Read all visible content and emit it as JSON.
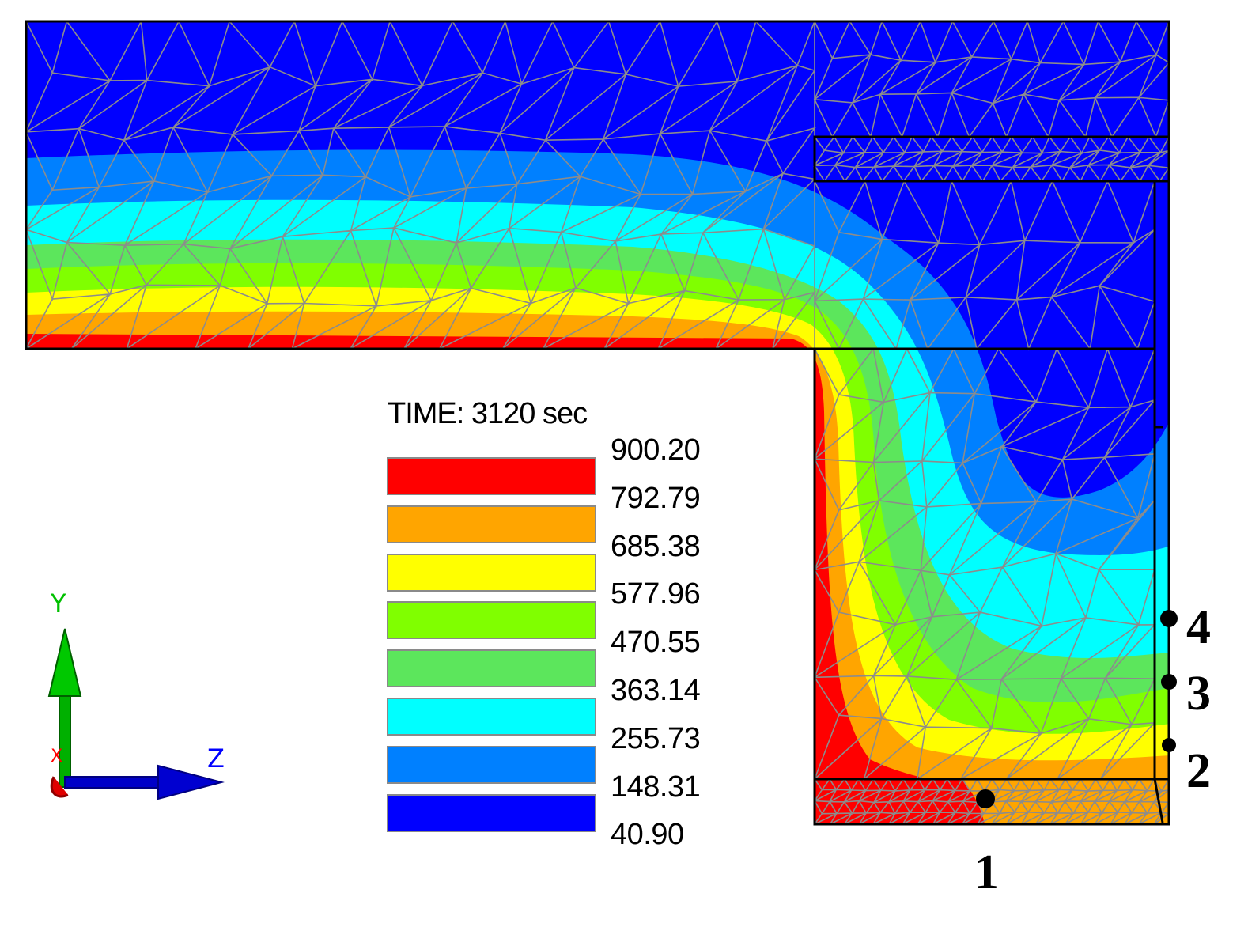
{
  "title": "TIME: 3120 sec",
  "legend": {
    "values": [
      "900.20",
      "792.79",
      "685.38",
      "577.96",
      "470.55",
      "363.14",
      "255.73",
      "148.31",
      "40.90"
    ],
    "bands": [
      {
        "color": "#ff0000"
      },
      {
        "color": "#ffa500"
      },
      {
        "color": "#ffff00"
      },
      {
        "color": "#80ff00"
      },
      {
        "color": "#5ce65c"
      },
      {
        "color": "#00ffff"
      },
      {
        "color": "#0080ff"
      },
      {
        "color": "#0000ff"
      }
    ]
  },
  "points": [
    {
      "label": "1"
    },
    {
      "label": "2"
    },
    {
      "label": "3"
    },
    {
      "label": "4"
    }
  ],
  "axes": {
    "y_label": "Y",
    "z_label": "Z",
    "x_label": "X"
  },
  "colors": {
    "mesh": "#8c8c8c",
    "outline": "#000000"
  }
}
